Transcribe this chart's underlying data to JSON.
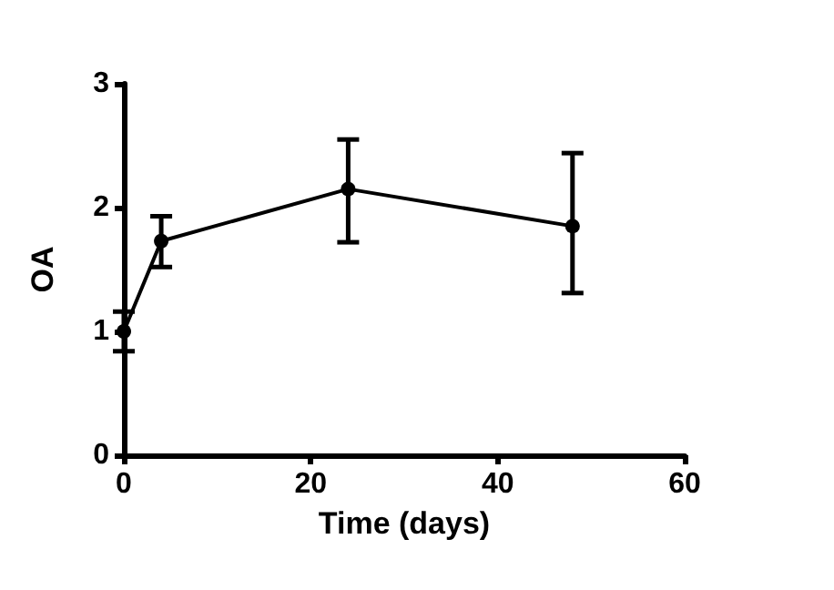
{
  "chart_data": {
    "type": "line",
    "xlabel": "Time (days)",
    "ylabel": "OA",
    "x": [
      0,
      4,
      24,
      48
    ],
    "series": [
      {
        "color": "#000000",
        "values": [
          1.0,
          1.73,
          2.15,
          1.85
        ],
        "errors": [
          [
            0.84,
            1.16
          ],
          [
            1.52,
            1.93
          ],
          [
            1.72,
            2.55
          ],
          [
            1.31,
            2.44
          ]
        ]
      }
    ],
    "xlim": [
      0,
      60
    ],
    "xticks": [
      0,
      20,
      40,
      60
    ],
    "ylim": [
      0,
      3
    ],
    "yticks": [
      0,
      1,
      2,
      3
    ],
    "grid": false,
    "marker": "circle",
    "line_style": "solid"
  }
}
